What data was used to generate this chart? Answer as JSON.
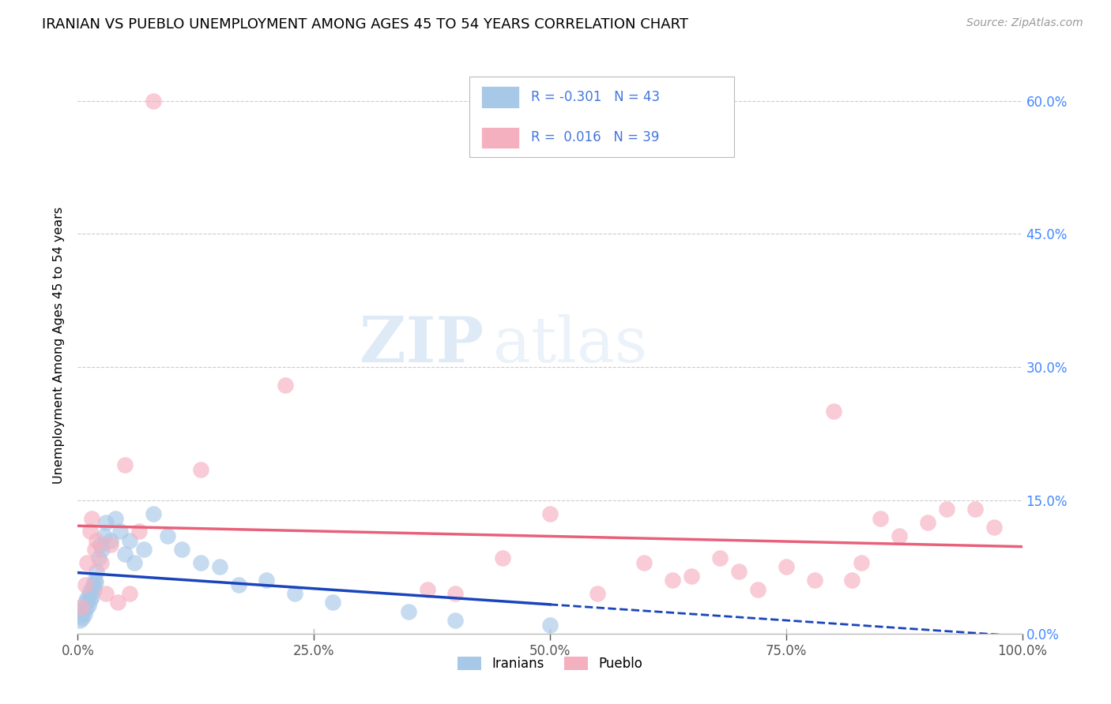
{
  "title": "IRANIAN VS PUEBLO UNEMPLOYMENT AMONG AGES 45 TO 54 YEARS CORRELATION CHART",
  "source": "Source: ZipAtlas.com",
  "ylabel": "Unemployment Among Ages 45 to 54 years",
  "xlim": [
    0,
    100
  ],
  "ylim": [
    0,
    65
  ],
  "yticks": [
    0,
    15,
    30,
    45,
    60
  ],
  "ytick_labels": [
    "0.0%",
    "15.0%",
    "30.0%",
    "45.0%",
    "60.0%"
  ],
  "xticks": [
    0,
    25,
    50,
    75,
    100
  ],
  "xtick_labels": [
    "0.0%",
    "25.0%",
    "50.0%",
    "75.0%",
    "100.0%"
  ],
  "iranians_color": "#a8c8e8",
  "pueblo_color": "#f5b0c0",
  "trend_iranian_color": "#1a44bb",
  "trend_pueblo_color": "#e8607a",
  "R_iranian": -0.301,
  "N_iranian": 43,
  "R_pueblo": 0.016,
  "N_pueblo": 39,
  "watermark_zip": "ZIP",
  "watermark_atlas": "atlas",
  "iranians_x": [
    0.2,
    0.3,
    0.4,
    0.5,
    0.6,
    0.7,
    0.8,
    0.9,
    1.0,
    1.1,
    1.2,
    1.3,
    1.4,
    1.5,
    1.6,
    1.7,
    1.8,
    1.9,
    2.0,
    2.2,
    2.4,
    2.6,
    2.8,
    3.0,
    3.5,
    4.0,
    4.5,
    5.0,
    5.5,
    6.0,
    7.0,
    8.0,
    9.5,
    11.0,
    13.0,
    15.0,
    17.0,
    20.0,
    23.0,
    27.0,
    35.0,
    40.0,
    50.0
  ],
  "iranians_y": [
    1.5,
    2.0,
    2.5,
    1.8,
    3.0,
    2.2,
    3.5,
    2.8,
    4.0,
    3.2,
    4.5,
    3.8,
    5.0,
    4.2,
    5.5,
    5.0,
    6.0,
    5.8,
    7.0,
    8.5,
    10.0,
    9.5,
    11.0,
    12.5,
    10.5,
    13.0,
    11.5,
    9.0,
    10.5,
    8.0,
    9.5,
    13.5,
    11.0,
    9.5,
    8.0,
    7.5,
    5.5,
    6.0,
    4.5,
    3.5,
    2.5,
    1.5,
    1.0
  ],
  "pueblo_x": [
    0.4,
    0.8,
    1.0,
    1.3,
    1.5,
    1.8,
    2.0,
    2.5,
    3.0,
    3.5,
    4.2,
    5.0,
    5.5,
    6.5,
    8.0,
    13.0,
    22.0,
    37.0,
    40.0,
    45.0,
    50.0,
    55.0,
    60.0,
    63.0,
    65.0,
    68.0,
    70.0,
    72.0,
    75.0,
    78.0,
    80.0,
    82.0,
    83.0,
    85.0,
    87.0,
    90.0,
    92.0,
    95.0,
    97.0
  ],
  "pueblo_y": [
    3.0,
    5.5,
    8.0,
    11.5,
    13.0,
    9.5,
    10.5,
    8.0,
    4.5,
    10.0,
    3.5,
    19.0,
    4.5,
    11.5,
    60.0,
    18.5,
    28.0,
    5.0,
    4.5,
    8.5,
    13.5,
    4.5,
    8.0,
    6.0,
    6.5,
    8.5,
    7.0,
    5.0,
    7.5,
    6.0,
    25.0,
    6.0,
    8.0,
    13.0,
    11.0,
    12.5,
    14.0,
    14.0,
    12.0
  ],
  "grid_color": "#cccccc",
  "spine_color": "#bbbbbb",
  "tick_color": "#555555"
}
